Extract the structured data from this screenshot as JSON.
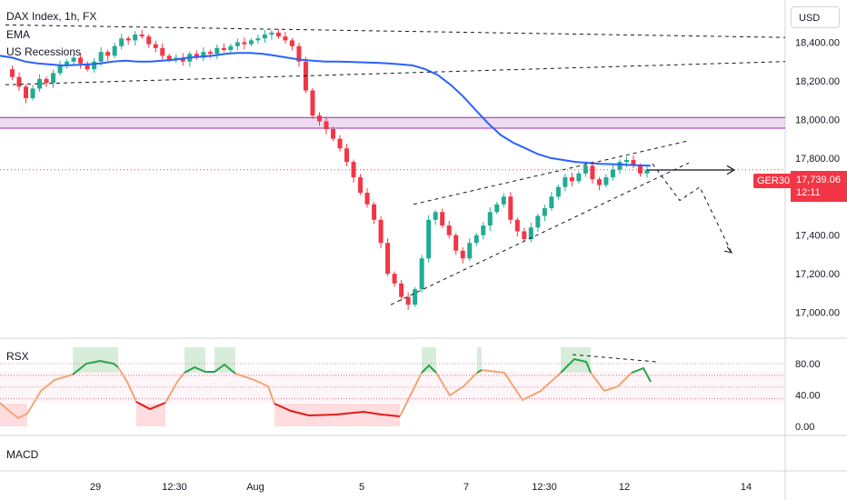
{
  "header": {
    "symbol_line": "DAX Index, 1h, FX",
    "indicator_1": "EMA",
    "indicator_2": "US Recessions"
  },
  "currency_button": "USD",
  "ticker_badge": "GER30",
  "price_badge": {
    "price": "17,739.06",
    "countdown": "12:11"
  },
  "panes": {
    "rsx_title": "RSX",
    "macd_title": "MACD"
  },
  "colors": {
    "up": "#22ab94",
    "down": "#f23645",
    "ema": "#2962ff",
    "band_fill": "#e1bee7",
    "band_line": "#9c27b0",
    "rsx_up": "#26a34d",
    "rsx_mid": "#f4a574",
    "rsx_down": "#e31919"
  },
  "chart_data": {
    "type": "candlestick",
    "y_axis": {
      "ticks": [
        18400,
        18200,
        18000,
        17800,
        17600,
        17400,
        17200,
        17000
      ],
      "tick_labels": [
        "18,400.00",
        "18,200.00",
        "18,000.00",
        "17,800.00",
        "17,600.00",
        "17,400.00",
        "17,200.00",
        "17,000.00"
      ]
    },
    "x_axis": {
      "tick_labels": [
        "29",
        "12:30",
        "Aug",
        "5",
        "7",
        "12:30",
        "12",
        "14"
      ]
    },
    "last_price": 17739.06,
    "ohlc_path": [
      18260,
      18220,
      18170,
      18110,
      18160,
      18210,
      18190,
      18240,
      18280,
      18300,
      18320,
      18290,
      18260,
      18300,
      18350,
      18330,
      18380,
      18420,
      18410,
      18440,
      18430,
      18390,
      18370,
      18330,
      18310,
      18320,
      18300,
      18340,
      18320,
      18350,
      18340,
      18370,
      18360,
      18380,
      18400,
      18390,
      18410,
      18420,
      18440,
      18450,
      18430,
      18410,
      18380,
      18300,
      18150,
      18020,
      17990,
      17950,
      17900,
      17850,
      17780,
      17700,
      17620,
      17560,
      17480,
      17360,
      17200,
      17150,
      17080,
      17040,
      17120,
      17280,
      17480,
      17520,
      17450,
      17400,
      17320,
      17280,
      17360,
      17400,
      17450,
      17520,
      17560,
      17600,
      17480,
      17420,
      17380,
      17440,
      17500,
      17540,
      17600,
      17650,
      17700,
      17680,
      17720,
      17760,
      17690,
      17660,
      17700,
      17740,
      17780,
      17790,
      17760,
      17720,
      17739
    ],
    "ema_path": [
      18330,
      18320,
      18300,
      18290,
      18285,
      18280,
      18282,
      18285,
      18290,
      18300,
      18305,
      18300,
      18300,
      18305,
      18310,
      18320,
      18325,
      18330,
      18340,
      18345,
      18345,
      18340,
      18330,
      18320,
      18310,
      18305,
      18300,
      18300,
      18298,
      18296,
      18294,
      18290,
      18286,
      18280,
      18260,
      18230,
      18180,
      18120,
      18050,
      17980,
      17920,
      17880,
      17850,
      17820,
      17800,
      17790,
      17780,
      17775,
      17770,
      17768,
      17765,
      17762,
      17760
    ],
    "resistance_band": [
      17955,
      18010
    ],
    "rsx_levels": {
      "ticks": [
        80,
        40,
        0
      ],
      "tick_labels": [
        "80.00",
        "40.00",
        "0.00"
      ]
    }
  }
}
